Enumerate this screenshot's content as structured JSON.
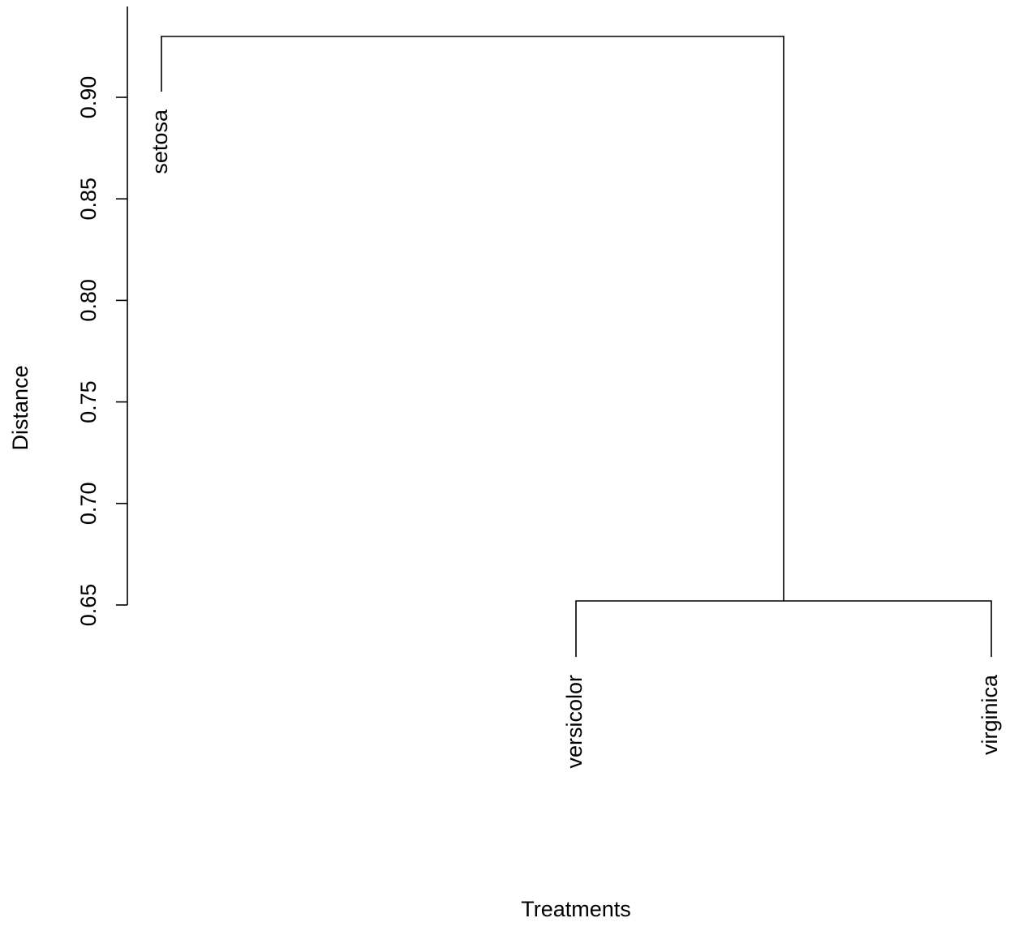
{
  "chart_data": {
    "type": "dendrogram",
    "title": "",
    "xlabel": "Treatments",
    "ylabel": "Distance",
    "ylim": [
      0.65,
      0.93
    ],
    "y_ticks": [
      0.65,
      0.7,
      0.75,
      0.8,
      0.85,
      0.9
    ],
    "y_tick_labels": [
      "0.65",
      "0.70",
      "0.75",
      "0.80",
      "0.85",
      "0.90"
    ],
    "leaves": [
      "setosa",
      "versicolor",
      "virginica"
    ],
    "merges": [
      {
        "members": [
          "versicolor",
          "virginica"
        ],
        "height": 0.652
      },
      {
        "members": [
          "setosa",
          "versicolor+virginica"
        ],
        "height": 0.93
      }
    ],
    "grid": false,
    "legend": "none"
  }
}
